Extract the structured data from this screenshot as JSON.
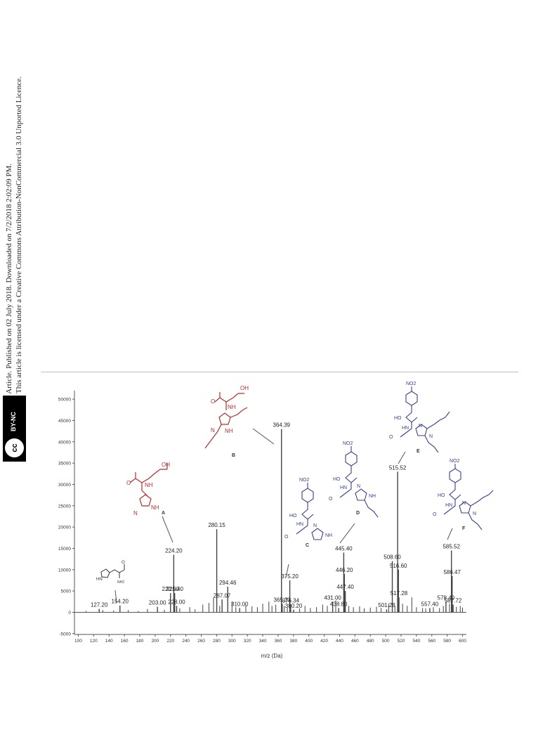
{
  "sidebar": {
    "line1": "Open Access Article. Published on 02 July 2018. Downloaded on 7/2/2018 2:02:09 PM.",
    "line2": "This article is licensed under a Creative Commons Attribution-NonCommercial 3.0 Unported Licence.",
    "badge_cc": "cc",
    "badge_text": "BY-NC"
  },
  "chart_data": {
    "type": "bar",
    "xlabel": "m/z (Da)",
    "ylabel": "",
    "xlim": [
      95,
      605
    ],
    "ylim": [
      -5200,
      52000
    ],
    "xticks": [
      100,
      120,
      140,
      160,
      180,
      200,
      220,
      240,
      260,
      280,
      300,
      320,
      340,
      360,
      380,
      400,
      420,
      440,
      460,
      480,
      500,
      520,
      540,
      560,
      580,
      600
    ],
    "yticks": [
      -5000,
      0,
      5000,
      10000,
      15000,
      20000,
      25000,
      30000,
      35000,
      40000,
      45000,
      50000
    ],
    "peaks": [
      {
        "mz": 127.2,
        "intensity": 800,
        "label": "127.20"
      },
      {
        "mz": 154.2,
        "intensity": 1600,
        "label": "154.20"
      },
      {
        "mz": 203.0,
        "intensity": 1300,
        "label": "203.00"
      },
      {
        "mz": 220.0,
        "intensity": 4500,
        "label": "220.00"
      },
      {
        "mz": 224.2,
        "intensity": 13500,
        "label": "224.20"
      },
      {
        "mz": 225.4,
        "intensity": 4500,
        "label": "225.40"
      },
      {
        "mz": 228.0,
        "intensity": 1500,
        "label": "228.00"
      },
      {
        "mz": 280.15,
        "intensity": 19500,
        "label": "280.15"
      },
      {
        "mz": 287.07,
        "intensity": 3000,
        "label": "287.07"
      },
      {
        "mz": 294.46,
        "intensity": 6000,
        "label": "294.46"
      },
      {
        "mz": 310.0,
        "intensity": 1000,
        "label": "310.00"
      },
      {
        "mz": 364.39,
        "intensity": 43000,
        "label": "364.39"
      },
      {
        "mz": 365.33,
        "intensity": 2000,
        "label": "365.33"
      },
      {
        "mz": 375.2,
        "intensity": 7500,
        "label": "375.20"
      },
      {
        "mz": 376.34,
        "intensity": 1800,
        "label": "376.34"
      },
      {
        "mz": 380.2,
        "intensity": 600,
        "label": "380.20"
      },
      {
        "mz": 431.0,
        "intensity": 2500,
        "label": "431.00"
      },
      {
        "mz": 438.8,
        "intensity": 1000,
        "label": "438.80"
      },
      {
        "mz": 445.4,
        "intensity": 14000,
        "label": "445.40"
      },
      {
        "mz": 446.2,
        "intensity": 9000,
        "label": "446.20"
      },
      {
        "mz": 447.4,
        "intensity": 5000,
        "label": "447.40"
      },
      {
        "mz": 501.28,
        "intensity": 700,
        "label": "501.28"
      },
      {
        "mz": 508.6,
        "intensity": 12000,
        "label": "508.60"
      },
      {
        "mz": 515.52,
        "intensity": 33000,
        "label": "515.52"
      },
      {
        "mz": 516.6,
        "intensity": 10000,
        "label": "516.60"
      },
      {
        "mz": 517.28,
        "intensity": 3500,
        "label": "517.28"
      },
      {
        "mz": 557.4,
        "intensity": 1000,
        "label": "557.40"
      },
      {
        "mz": 578.4,
        "intensity": 2500,
        "label": "578.40"
      },
      {
        "mz": 585.52,
        "intensity": 14500,
        "label": "585.52"
      },
      {
        "mz": 586.47,
        "intensity": 8500,
        "label": "586.47"
      },
      {
        "mz": 587.72,
        "intensity": 1800,
        "label": "587.72"
      }
    ],
    "minor_peaks": [
      {
        "mz": 110,
        "intensity": 300
      },
      {
        "mz": 132,
        "intensity": 500
      },
      {
        "mz": 146,
        "intensity": 400
      },
      {
        "mz": 165,
        "intensity": 500
      },
      {
        "mz": 178,
        "intensity": 300
      },
      {
        "mz": 190,
        "intensity": 800
      },
      {
        "mz": 212,
        "intensity": 600
      },
      {
        "mz": 232,
        "intensity": 900
      },
      {
        "mz": 245,
        "intensity": 1200
      },
      {
        "mz": 252,
        "intensity": 700
      },
      {
        "mz": 262,
        "intensity": 1800
      },
      {
        "mz": 270,
        "intensity": 2200
      },
      {
        "mz": 276,
        "intensity": 3500
      },
      {
        "mz": 284,
        "intensity": 1500
      },
      {
        "mz": 300,
        "intensity": 2500
      },
      {
        "mz": 305,
        "intensity": 1200
      },
      {
        "mz": 318,
        "intensity": 1600
      },
      {
        "mz": 326,
        "intensity": 1400
      },
      {
        "mz": 333,
        "intensity": 1200
      },
      {
        "mz": 340,
        "intensity": 2000
      },
      {
        "mz": 348,
        "intensity": 2500
      },
      {
        "mz": 352,
        "intensity": 1500
      },
      {
        "mz": 357,
        "intensity": 1800
      },
      {
        "mz": 368,
        "intensity": 1500
      },
      {
        "mz": 372,
        "intensity": 1100
      },
      {
        "mz": 388,
        "intensity": 900
      },
      {
        "mz": 395,
        "intensity": 1500
      },
      {
        "mz": 402,
        "intensity": 1000
      },
      {
        "mz": 410,
        "intensity": 1200
      },
      {
        "mz": 418,
        "intensity": 1800
      },
      {
        "mz": 424,
        "intensity": 1500
      },
      {
        "mz": 435,
        "intensity": 2800
      },
      {
        "mz": 452,
        "intensity": 1500
      },
      {
        "mz": 458,
        "intensity": 1200
      },
      {
        "mz": 466,
        "intensity": 1400
      },
      {
        "mz": 472,
        "intensity": 900
      },
      {
        "mz": 480,
        "intensity": 1100
      },
      {
        "mz": 488,
        "intensity": 1300
      },
      {
        "mz": 494,
        "intensity": 1000
      },
      {
        "mz": 504,
        "intensity": 2000
      },
      {
        "mz": 512,
        "intensity": 1500
      },
      {
        "mz": 522,
        "intensity": 2000
      },
      {
        "mz": 528,
        "intensity": 1500
      },
      {
        "mz": 534,
        "intensity": 3500
      },
      {
        "mz": 540,
        "intensity": 1200
      },
      {
        "mz": 548,
        "intensity": 1000
      },
      {
        "mz": 552,
        "intensity": 900
      },
      {
        "mz": 562,
        "intensity": 1200
      },
      {
        "mz": 570,
        "intensity": 1000
      },
      {
        "mz": 575,
        "intensity": 1500
      },
      {
        "mz": 583,
        "intensity": 2000
      },
      {
        "mz": 592,
        "intensity": 1300
      },
      {
        "mz": 597,
        "intensity": 1500
      },
      {
        "mz": 600,
        "intensity": 1100
      }
    ],
    "annotations": [
      "A",
      "B",
      "C",
      "D",
      "E",
      "F"
    ],
    "structure_labels": [
      "OH",
      "O",
      "NH",
      "HN",
      "N",
      "NO2",
      "HO",
      "NH2"
    ],
    "colors": {
      "axis": "#555555",
      "bars": "#444444",
      "struct_red": "#b0302e",
      "struct_blue": "#3a3f8f",
      "struct_black": "#333333"
    },
    "grid": false
  }
}
